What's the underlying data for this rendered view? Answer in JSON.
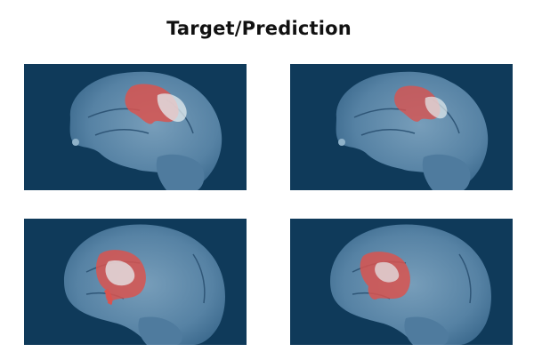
{
  "figure": {
    "title": "Target/Prediction"
  },
  "panels": [
    {
      "row": 1,
      "col": 1,
      "role": "target",
      "view": "sagittal-brain-mri",
      "overlay": "segmentation-mask"
    },
    {
      "row": 1,
      "col": 2,
      "role": "prediction",
      "view": "sagittal-brain-mri",
      "overlay": "segmentation-mask"
    },
    {
      "row": 2,
      "col": 1,
      "role": "target",
      "view": "sagittal-brain-mri",
      "overlay": "segmentation-mask"
    },
    {
      "row": 2,
      "col": 2,
      "role": "prediction",
      "view": "sagittal-brain-mri",
      "overlay": "segmentation-mask"
    }
  ],
  "colors": {
    "background": "#0f3a5a",
    "brain_tissue": "#5a86a8",
    "mask_red": "#d9534f",
    "mask_highlight": "#e6eef0"
  }
}
